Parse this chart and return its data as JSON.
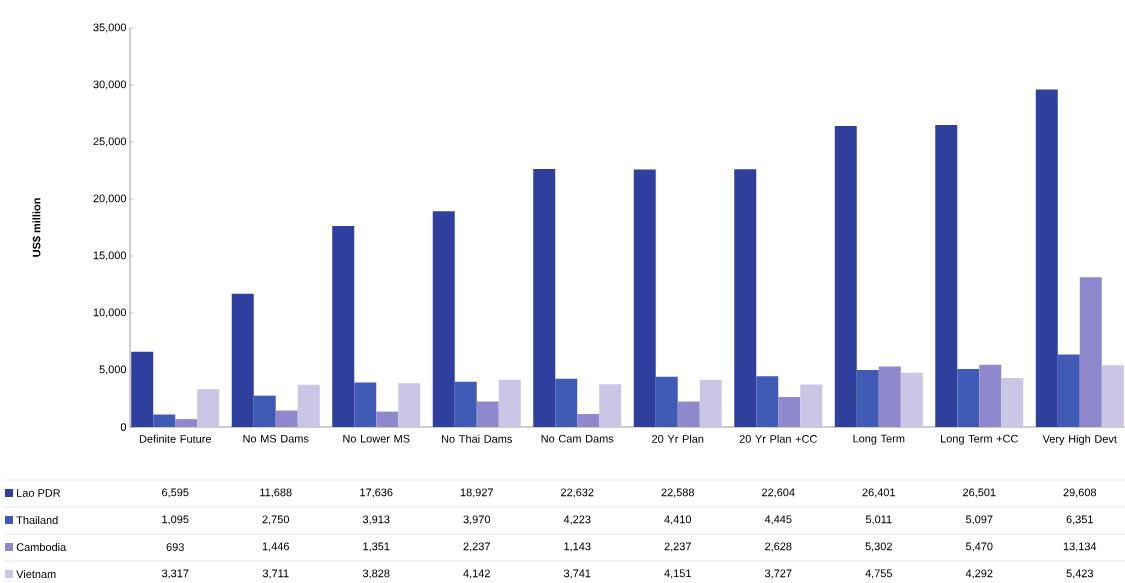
{
  "chart_data": {
    "type": "bar",
    "ylabel": "US$ million",
    "categories": [
      "Definite Future",
      "No MS Dams",
      "No Lower MS",
      "No Thai Dams",
      "No Cam Dams",
      "20 Yr Plan",
      "20 Yr Plan +CC",
      "Long Term",
      "Long Term +CC",
      "Very High Devt"
    ],
    "series": [
      {
        "name": "Lao PDR",
        "color": "#2e3f9e",
        "values": [
          6595,
          11688,
          17636,
          18927,
          22632,
          22588,
          22604,
          26401,
          26501,
          29608
        ],
        "value_labels": [
          "6,595",
          "11,688",
          "17,636",
          "18,927",
          "22,632",
          "22,588",
          "22,604",
          "26,401",
          "26,501",
          "29,608"
        ]
      },
      {
        "name": "Thailand",
        "color": "#3f5bb5",
        "values": [
          1095,
          2750,
          3913,
          3970,
          4223,
          4410,
          4445,
          5011,
          5097,
          6351
        ],
        "value_labels": [
          "1,095",
          "2,750",
          "3,913",
          "3,970",
          "4,223",
          "4,410",
          "4,445",
          "5,011",
          "5,097",
          "6,351"
        ]
      },
      {
        "name": "Cambodia",
        "color": "#9088cc",
        "values": [
          693,
          1446,
          1351,
          2237,
          1143,
          2237,
          2628,
          5302,
          5470,
          13134
        ],
        "value_labels": [
          "693",
          "1,446",
          "1,351",
          "2,237",
          "1,143",
          "2,237",
          "2,628",
          "5,302",
          "5,470",
          "13,134"
        ]
      },
      {
        "name": "Vietnam",
        "color": "#c9c6e6",
        "values": [
          3317,
          3711,
          3828,
          4142,
          3741,
          4151,
          3727,
          4755,
          4292,
          5423
        ],
        "value_labels": [
          "3,317",
          "3,711",
          "3,828",
          "4,142",
          "3,741",
          "4,151",
          "3,727",
          "4,755",
          "4,292",
          "5,423"
        ]
      }
    ],
    "ylim": [
      0,
      35000
    ],
    "yticks": [
      {
        "value": 0,
        "label": "0"
      },
      {
        "value": 5000,
        "label": "5,000"
      },
      {
        "value": 10000,
        "label": "10,000"
      },
      {
        "value": 15000,
        "label": "15,000"
      },
      {
        "value": 20000,
        "label": "20,000"
      },
      {
        "value": 25000,
        "label": "25,000"
      },
      {
        "value": 30000,
        "label": "30,000"
      },
      {
        "value": 35000,
        "label": "35,000"
      }
    ],
    "legend": "bottom left"
  }
}
